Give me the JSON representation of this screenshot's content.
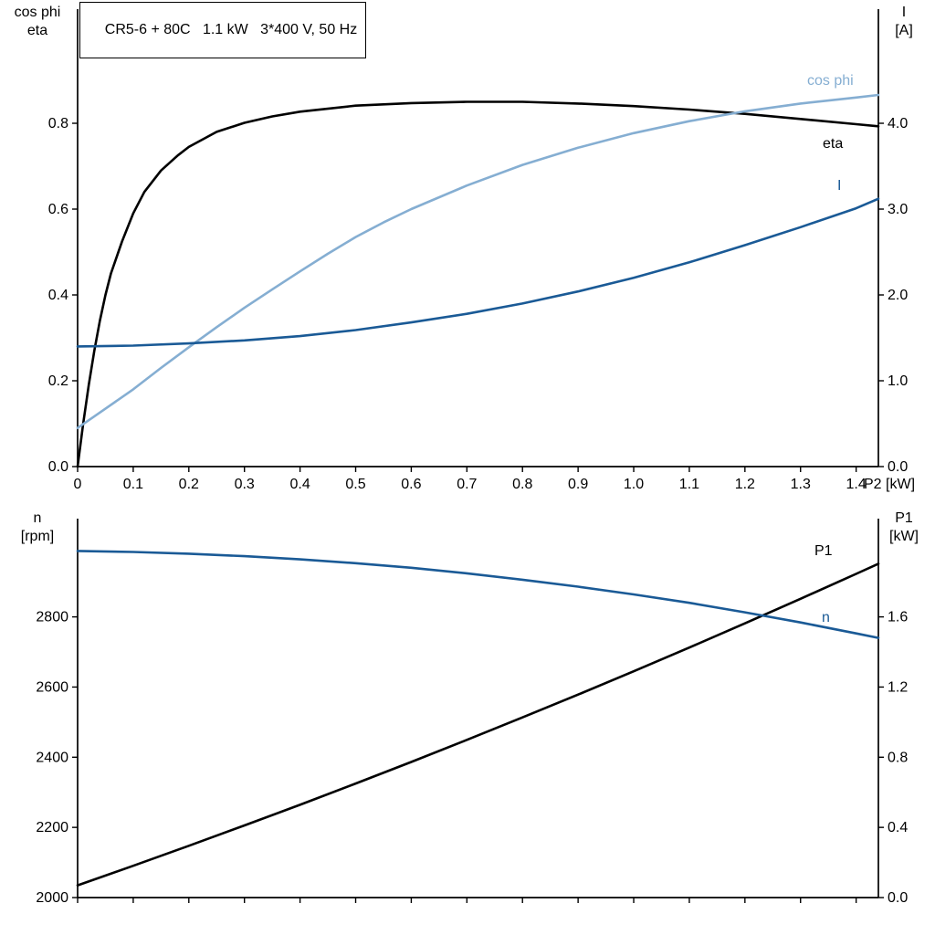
{
  "labels": {
    "top_left": [
      "cos phi",
      "eta"
    ],
    "top_right": [
      "I",
      "[A]"
    ],
    "bottom_left": [
      "n",
      "[rpm]"
    ],
    "bottom_right": [
      "P1",
      "[kW]"
    ],
    "x_axis": "P2 [kW]",
    "curves": {
      "cos_phi": "cos phi",
      "eta": "eta",
      "current": "I",
      "p1": "P1",
      "n": "n"
    }
  },
  "chart_data": [
    {
      "type": "line",
      "title": "CR5-6 + 80C   1.1 kW   3*400 V, 50 Hz",
      "xlabel": "P2 [kW]",
      "xlim": [
        0,
        1.44
      ],
      "x_ticks": [
        0,
        0.1,
        0.2,
        0.3,
        0.4,
        0.5,
        0.6,
        0.7,
        0.8,
        0.9,
        1.0,
        1.1,
        1.2,
        1.3,
        1.4
      ],
      "x_tick_labels": [
        "0",
        "0.1",
        "0.2",
        "0.3",
        "0.4",
        "0.5",
        "0.6",
        "0.7",
        "0.8",
        "0.9",
        "1.0",
        "1.1",
        "1.2",
        "1.3",
        "1.4"
      ],
      "left_axis": {
        "label": "cos phi / eta",
        "lim": [
          0,
          1.066
        ],
        "ticks": [
          0.0,
          0.2,
          0.4,
          0.6,
          0.8
        ],
        "tick_labels": [
          "0.0",
          "0.2",
          "0.4",
          "0.6",
          "0.8"
        ]
      },
      "right_axis": {
        "label": "I [A]",
        "lim": [
          0,
          5.33
        ],
        "ticks": [
          0.0,
          1.0,
          2.0,
          3.0,
          4.0
        ],
        "tick_labels": [
          "0.0",
          "1.0",
          "2.0",
          "3.0",
          "4.0"
        ]
      },
      "series": [
        {
          "id": "eta",
          "name": "eta",
          "axis": "left",
          "color": "#000000",
          "x": [
            0,
            0.01,
            0.02,
            0.03,
            0.04,
            0.05,
            0.06,
            0.08,
            0.1,
            0.12,
            0.15,
            0.18,
            0.2,
            0.25,
            0.3,
            0.35,
            0.4,
            0.5,
            0.6,
            0.7,
            0.8,
            0.9,
            1.0,
            1.1,
            1.2,
            1.3,
            1.4,
            1.44
          ],
          "y": [
            0,
            0.1,
            0.19,
            0.27,
            0.34,
            0.4,
            0.45,
            0.525,
            0.59,
            0.64,
            0.69,
            0.725,
            0.745,
            0.78,
            0.801,
            0.816,
            0.827,
            0.841,
            0.847,
            0.85,
            0.85,
            0.846,
            0.84,
            0.832,
            0.822,
            0.81,
            0.798,
            0.793
          ]
        },
        {
          "id": "cos-phi",
          "name": "cos phi",
          "axis": "left",
          "color": "#85aed2",
          "x": [
            0,
            0.05,
            0.1,
            0.15,
            0.2,
            0.25,
            0.3,
            0.35,
            0.4,
            0.45,
            0.5,
            0.55,
            0.6,
            0.7,
            0.8,
            0.9,
            1.0,
            1.1,
            1.2,
            1.3,
            1.4,
            1.44
          ],
          "y": [
            0.09,
            0.135,
            0.18,
            0.23,
            0.278,
            0.325,
            0.37,
            0.413,
            0.455,
            0.496,
            0.535,
            0.569,
            0.6,
            0.655,
            0.703,
            0.743,
            0.777,
            0.805,
            0.828,
            0.846,
            0.86,
            0.866
          ]
        },
        {
          "id": "current",
          "name": "I",
          "axis": "right",
          "color": "#1a5a96",
          "x": [
            0,
            0.1,
            0.2,
            0.3,
            0.4,
            0.5,
            0.6,
            0.7,
            0.8,
            0.9,
            1.0,
            1.1,
            1.2,
            1.3,
            1.4,
            1.44
          ],
          "y": [
            1.4,
            1.41,
            1.435,
            1.47,
            1.52,
            1.59,
            1.68,
            1.78,
            1.9,
            2.04,
            2.2,
            2.38,
            2.58,
            2.79,
            3.01,
            3.12
          ]
        }
      ]
    },
    {
      "type": "line",
      "title": "",
      "xlabel": "",
      "xlim": [
        0,
        1.44
      ],
      "x_ticks": [
        0,
        0.1,
        0.2,
        0.3,
        0.4,
        0.5,
        0.6,
        0.7,
        0.8,
        0.9,
        1.0,
        1.1,
        1.2,
        1.3,
        1.4
      ],
      "x_tick_labels": [],
      "left_axis": {
        "label": "n [rpm]",
        "lim": [
          2000,
          3080
        ],
        "ticks": [
          2000,
          2200,
          2400,
          2600,
          2800
        ],
        "tick_labels": [
          "2000",
          "2200",
          "2400",
          "2600",
          "2800"
        ]
      },
      "right_axis": {
        "label": "P1 [kW]",
        "lim": [
          0,
          2.16
        ],
        "ticks": [
          0.0,
          0.4,
          0.8,
          1.2,
          1.6
        ],
        "tick_labels": [
          "0.0",
          "0.4",
          "0.8",
          "1.2",
          "1.6"
        ]
      },
      "series": [
        {
          "id": "p1",
          "name": "P1",
          "axis": "right",
          "color": "#000000",
          "x": [
            0,
            0.1,
            0.2,
            0.3,
            0.4,
            0.5,
            0.6,
            0.7,
            0.8,
            0.9,
            1.0,
            1.1,
            1.2,
            1.3,
            1.4,
            1.44
          ],
          "y": [
            0.07,
            0.181,
            0.295,
            0.411,
            0.529,
            0.65,
            0.773,
            0.899,
            1.027,
            1.157,
            1.29,
            1.425,
            1.563,
            1.703,
            1.845,
            1.903
          ]
        },
        {
          "id": "speed",
          "name": "n",
          "axis": "left",
          "color": "#1a5a96",
          "x": [
            0,
            0.1,
            0.2,
            0.3,
            0.4,
            0.5,
            0.6,
            0.7,
            0.8,
            0.9,
            1.0,
            1.1,
            1.2,
            1.3,
            1.4,
            1.44
          ],
          "y": [
            2988,
            2985,
            2980,
            2973,
            2964,
            2953,
            2940,
            2924,
            2906,
            2886,
            2864,
            2840,
            2813,
            2784,
            2753,
            2740
          ]
        }
      ]
    }
  ]
}
